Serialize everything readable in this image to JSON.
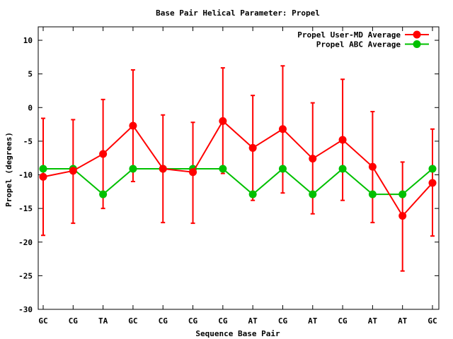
{
  "chart_data": {
    "type": "line",
    "title": "Base Pair Helical Parameter: Propel",
    "xlabel": "Sequence Base Pair",
    "ylabel": "Propel (degrees)",
    "categories": [
      "GC",
      "CG",
      "TA",
      "GC",
      "CG",
      "CG",
      "CG",
      "AT",
      "CG",
      "AT",
      "CG",
      "AT",
      "AT",
      "GC"
    ],
    "ylim": [
      -30,
      12
    ],
    "yticks": [
      10,
      5,
      0,
      -5,
      -10,
      -15,
      -20,
      -25,
      -30
    ],
    "grid": false,
    "legend_position": "top-right",
    "series": [
      {
        "name": "Propel User-MD Average",
        "color": "#ff0000",
        "marker": "circle",
        "values": [
          -10.3,
          -9.4,
          -6.9,
          -2.7,
          -9.1,
          -9.6,
          -2.0,
          -6.0,
          -3.2,
          -7.6,
          -4.8,
          -8.8,
          -16.1,
          -11.2
        ],
        "error_low": [
          -19.0,
          -17.2,
          -15.0,
          -11.0,
          -17.1,
          -17.2,
          -9.8,
          -13.8,
          -12.7,
          -15.8,
          -13.8,
          -17.1,
          -24.3,
          -19.1
        ],
        "error_high": [
          -1.6,
          -1.8,
          1.2,
          5.6,
          -1.1,
          -2.2,
          5.9,
          1.8,
          6.2,
          0.7,
          4.2,
          -0.6,
          -8.1,
          -3.2
        ]
      },
      {
        "name": "Propel ABC Average",
        "color": "#00c000",
        "marker": "circle",
        "values": [
          -9.1,
          -9.1,
          -12.9,
          -9.1,
          -9.1,
          -9.1,
          -9.1,
          -12.9,
          -9.1,
          -12.9,
          -9.1,
          -12.9,
          -12.9,
          -9.1
        ]
      }
    ]
  }
}
